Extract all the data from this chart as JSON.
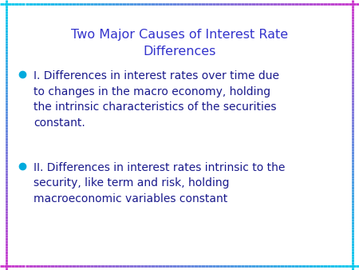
{
  "title_line1": "Two Major Causes of Interest Rate",
  "title_line2": "Differences",
  "title_color": "#3333cc",
  "title_fontsize": 11.5,
  "bullet_color": "#00aadd",
  "text_color": "#1a1a8c",
  "text_fontsize": 10,
  "background_color": "#ffffff",
  "border_magenta": "#cc33cc",
  "border_cyan": "#00ccee",
  "bullet1_text": "I. Differences in interest rates over time due\nto changes in the macro economy, holding\nthe intrinsic characteristics of the securities\nconstant.",
  "bullet2_text": "II. Differences in interest rates intrinsic to the\nsecurity, like term and risk, holding\nmacroeconomic variables constant",
  "figsize": [
    4.5,
    3.38
  ],
  "dpi": 100
}
